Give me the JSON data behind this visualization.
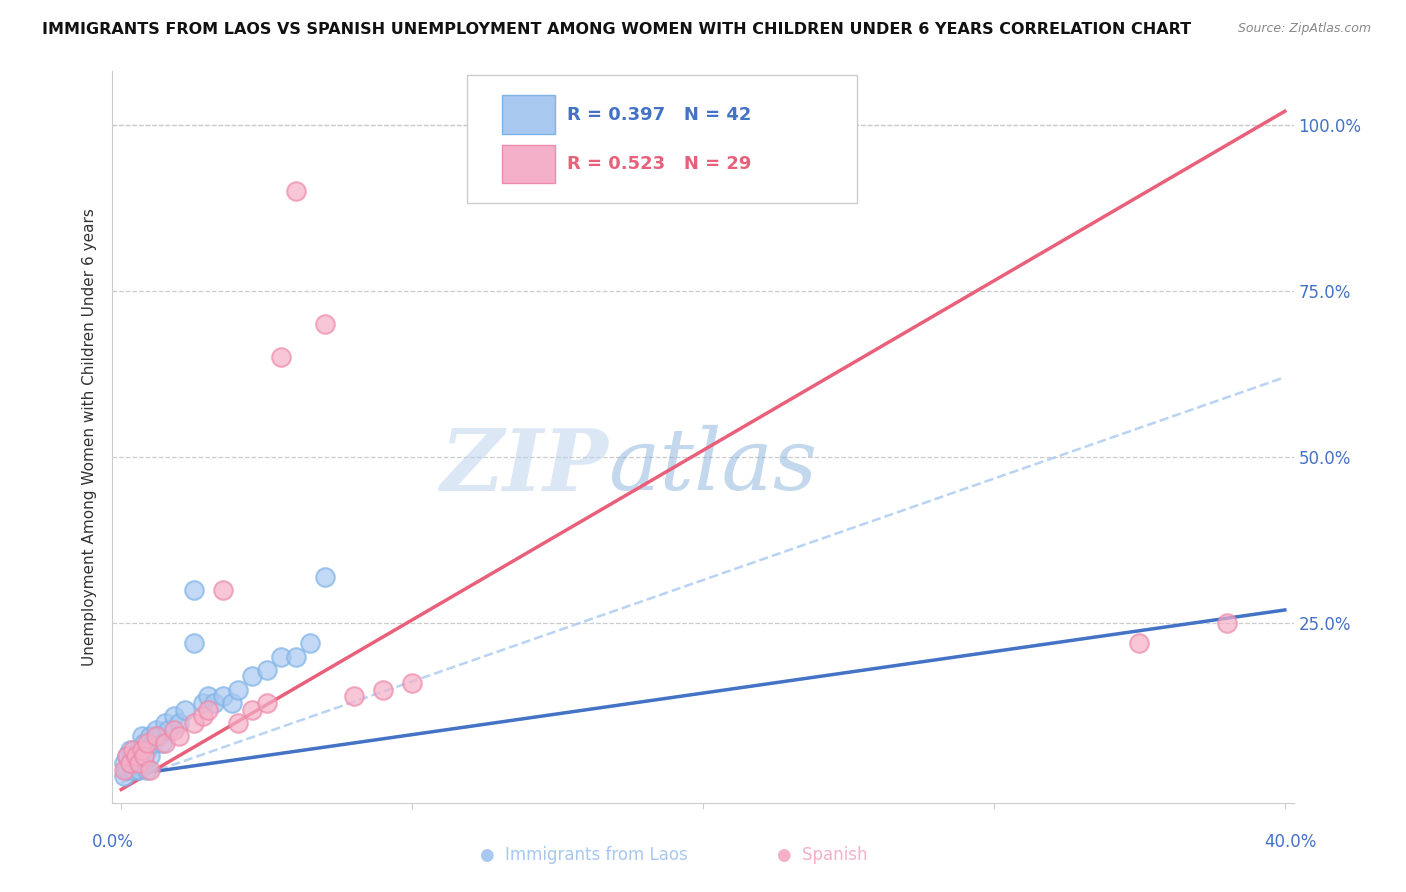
{
  "title": "IMMIGRANTS FROM LAOS VS SPANISH UNEMPLOYMENT AMONG WOMEN WITH CHILDREN UNDER 6 YEARS CORRELATION CHART",
  "source": "Source: ZipAtlas.com",
  "ylabel": "Unemployment Among Women with Children Under 6 years",
  "watermark": "ZIPatlas",
  "r1": 0.397,
  "n1": 42,
  "r2": 0.523,
  "n2": 29,
  "color_blue_fill": "#A8C8F0",
  "color_blue_edge": "#7EB3E8",
  "color_pink_fill": "#F4B0C8",
  "color_pink_edge": "#EE8AAA",
  "color_blue_line": "#4472C4",
  "color_pink_line": "#E8607A",
  "color_dashed": "#A8C8F0",
  "xlim_min": -0.003,
  "xlim_max": 0.403,
  "ylim_min": -0.02,
  "ylim_max": 1.08,
  "blue_x": [
    0.001,
    0.001,
    0.002,
    0.002,
    0.003,
    0.003,
    0.004,
    0.005,
    0.005,
    0.006,
    0.006,
    0.007,
    0.007,
    0.008,
    0.008,
    0.009,
    0.009,
    0.01,
    0.01,
    0.011,
    0.012,
    0.013,
    0.014,
    0.015,
    0.016,
    0.018,
    0.02,
    0.022,
    0.025,
    0.025,
    0.028,
    0.03,
    0.032,
    0.035,
    0.038,
    0.04,
    0.045,
    0.05,
    0.055,
    0.06,
    0.065,
    0.07
  ],
  "blue_y": [
    0.02,
    0.04,
    0.03,
    0.05,
    0.04,
    0.06,
    0.03,
    0.05,
    0.04,
    0.03,
    0.06,
    0.05,
    0.08,
    0.07,
    0.04,
    0.06,
    0.03,
    0.05,
    0.08,
    0.07,
    0.09,
    0.08,
    0.07,
    0.1,
    0.09,
    0.11,
    0.1,
    0.12,
    0.3,
    0.22,
    0.13,
    0.14,
    0.13,
    0.14,
    0.13,
    0.15,
    0.17,
    0.18,
    0.2,
    0.2,
    0.22,
    0.32
  ],
  "pink_x": [
    0.001,
    0.002,
    0.003,
    0.004,
    0.005,
    0.006,
    0.007,
    0.008,
    0.009,
    0.01,
    0.012,
    0.015,
    0.018,
    0.02,
    0.025,
    0.028,
    0.03,
    0.035,
    0.04,
    0.045,
    0.05,
    0.055,
    0.06,
    0.07,
    0.08,
    0.09,
    0.1,
    0.35,
    0.38
  ],
  "pink_y": [
    0.03,
    0.05,
    0.04,
    0.06,
    0.05,
    0.04,
    0.06,
    0.05,
    0.07,
    0.03,
    0.08,
    0.07,
    0.09,
    0.08,
    0.1,
    0.11,
    0.12,
    0.3,
    0.1,
    0.12,
    0.13,
    0.65,
    0.9,
    0.7,
    0.14,
    0.15,
    0.16,
    0.22,
    0.25
  ],
  "blue_trend_x": [
    0.0,
    0.4
  ],
  "blue_trend_y": [
    0.02,
    0.27
  ],
  "pink_trend_x": [
    0.0,
    0.4
  ],
  "pink_trend_y": [
    0.0,
    1.02
  ],
  "dashed_trend_x": [
    0.0,
    0.4
  ],
  "dashed_trend_y": [
    0.01,
    0.62
  ],
  "legend1_label": "Immigrants from Laos",
  "legend2_label": "Spanish",
  "xtick_label_left": "0.0%",
  "xtick_label_right": "40.0%",
  "ytick_labels_right": [
    "25.0%",
    "50.0%",
    "75.0%",
    "100.0%"
  ],
  "ytick_vals": [
    0.25,
    0.5,
    0.75,
    1.0
  ]
}
